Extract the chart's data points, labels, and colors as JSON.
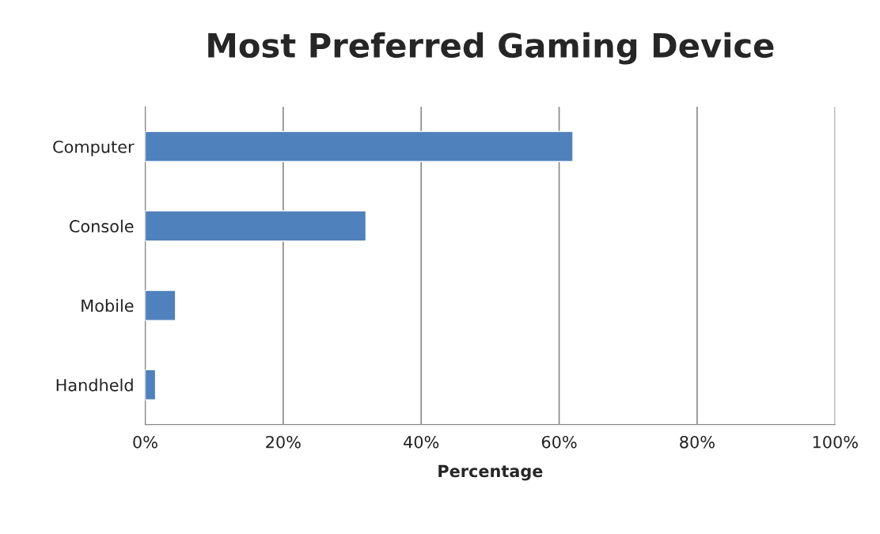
{
  "chart_data": {
    "type": "bar",
    "orientation": "horizontal",
    "title": "Most Preferred Gaming Device",
    "xlabel": "Percentage",
    "categories": [
      "Computer",
      "Console",
      "Mobile",
      "Handheld"
    ],
    "values": [
      62,
      32,
      4.4,
      1.5
    ],
    "color": "#4f81bd",
    "xlim": [
      0,
      100
    ],
    "xticks": [
      {
        "value": 0,
        "label": "0%"
      },
      {
        "value": 20,
        "label": "20%"
      },
      {
        "value": 40,
        "label": "40%"
      },
      {
        "value": 60,
        "label": "60%"
      },
      {
        "value": 80,
        "label": "80%"
      },
      {
        "value": 100,
        "label": "100%"
      }
    ],
    "grid": "x",
    "legend": false
  }
}
